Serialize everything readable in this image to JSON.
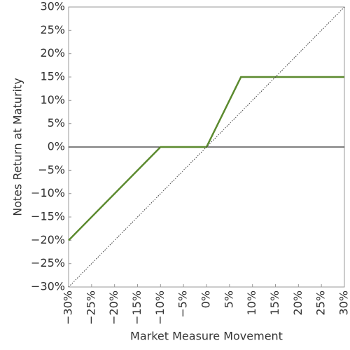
{
  "chart_data": {
    "type": "line",
    "xlabel": "Market Measure Movement",
    "ylabel": "Notes Return at Maturity",
    "xlim": [
      -30,
      30
    ],
    "ylim": [
      -30,
      30
    ],
    "xticks": [
      {
        "value": -30,
        "label": "−30%"
      },
      {
        "value": -25,
        "label": "−25%"
      },
      {
        "value": -20,
        "label": "−20%"
      },
      {
        "value": -15,
        "label": "−15%"
      },
      {
        "value": -10,
        "label": "−10%"
      },
      {
        "value": -5,
        "label": "−5%"
      },
      {
        "value": 0,
        "label": "0%"
      },
      {
        "value": 5,
        "label": "5%"
      },
      {
        "value": 10,
        "label": "10%"
      },
      {
        "value": 15,
        "label": "15%"
      },
      {
        "value": 20,
        "label": "20%"
      },
      {
        "value": 25,
        "label": "25%"
      },
      {
        "value": 30,
        "label": "30%"
      }
    ],
    "yticks": [
      {
        "value": -30,
        "label": "−30%"
      },
      {
        "value": -25,
        "label": "−25%"
      },
      {
        "value": -20,
        "label": "−20%"
      },
      {
        "value": -15,
        "label": "−15%"
      },
      {
        "value": -10,
        "label": "−10%"
      },
      {
        "value": -5,
        "label": "−5%"
      },
      {
        "value": 0,
        "label": "0%"
      },
      {
        "value": 5,
        "label": "5%"
      },
      {
        "value": 10,
        "label": "10%"
      },
      {
        "value": 15,
        "label": "15%"
      },
      {
        "value": 20,
        "label": "20%"
      },
      {
        "value": 25,
        "label": "25%"
      },
      {
        "value": 30,
        "label": "30%"
      }
    ],
    "series": [
      {
        "color": "#5b8a2e",
        "dash": "solid",
        "x": [
          -30,
          -10,
          0,
          7.5,
          30
        ],
        "values": [
          -20,
          0,
          0,
          15,
          15
        ]
      },
      {
        "color": "#333333",
        "dash": "dotted",
        "x": [
          -30,
          30
        ],
        "values": [
          -30,
          30
        ]
      }
    ]
  }
}
